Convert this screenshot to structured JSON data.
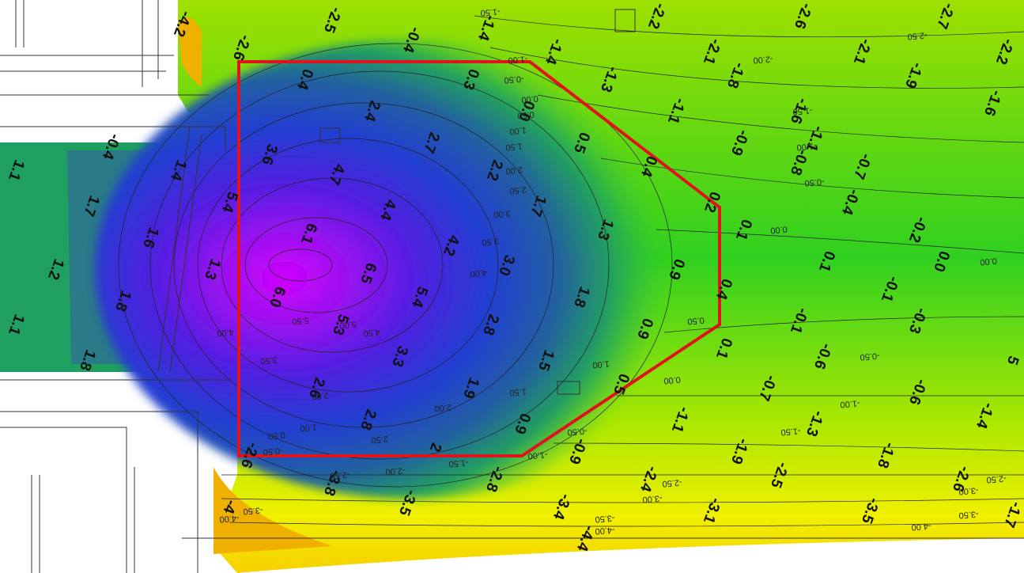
{
  "soundings": [
    "-4.2",
    "-2.5",
    "-0.4",
    "-2.6",
    "-1.4",
    "-1.4",
    "-2.2",
    "-1.3",
    "-2.1",
    "-1.8",
    "-2.6",
    "-2.1",
    "-1.9",
    "-2.7",
    "-2.2",
    "-1.6",
    "-1.1",
    "-0.9",
    "-1.6",
    "-1.1",
    "-0.8",
    "-0.4",
    "0.4",
    "0.3",
    "0.0",
    "0.5",
    "0.4",
    "2.4",
    "3.6",
    "4.7",
    "2.7",
    "2.2",
    "5.4",
    "4.4",
    "1.7",
    "0.2",
    "-0.4",
    "-0.7",
    "6.1",
    "4.2",
    "1.3",
    "0.1",
    "-0.2",
    "1.1",
    "1.7",
    "1.4",
    "1.6",
    "1.2",
    "6.5",
    "3.0",
    "0.9",
    "0.1",
    "0.0",
    "6.0",
    "5.4",
    "1.8",
    "0.4",
    "-0.1",
    "1.8",
    "1.1",
    "1.3",
    "5.3",
    "2.8",
    "0.9",
    "-0.1",
    "-0.3",
    "1.8",
    "3.3",
    "1.5",
    "0.1",
    "-0.6",
    "5",
    "2.6",
    "1.9",
    "0.5",
    "-0.7",
    "-0.6",
    "2.8",
    "0.9",
    "-1.1",
    "-1.3",
    "-1.4",
    "2",
    "-0.9",
    "-1.9",
    "-1.8",
    "-2.6",
    "-3.8",
    "-2.8",
    "-2.4",
    "-2.5",
    "-2.6",
    "-4",
    "-3.5",
    "-3.4",
    "-3.1",
    "-3.5",
    "-1.7",
    "-4.4"
  ],
  "contour_labels": [
    "-1.50",
    "-1.00",
    "-0.50",
    "0.00",
    "0.50",
    "1.00",
    "1.50",
    "2.00",
    "2.50",
    "3.00",
    "3.50",
    "4.00",
    "4.50",
    "5.00",
    "5.50",
    "-2.00",
    "-1.50",
    "-1.00",
    "-0.50",
    "0.00",
    "0.00",
    "-2.50",
    "-0.50",
    "-1.00",
    "-1.50",
    "-2.50",
    "-3.00",
    "-3.50",
    "-4.00",
    "-2.50",
    "-3.00",
    "-3.50",
    "-4.00",
    "1.00",
    "1.50",
    "2.00",
    "2.50",
    "0.00",
    "-0.50",
    "-1.00",
    "-1.50",
    "-2.00",
    "-2.50",
    "-3.50",
    "-4.00",
    "0.50",
    "1.00",
    "0.50",
    "-0.50",
    "2.00",
    "3.50",
    "4.00"
  ]
}
